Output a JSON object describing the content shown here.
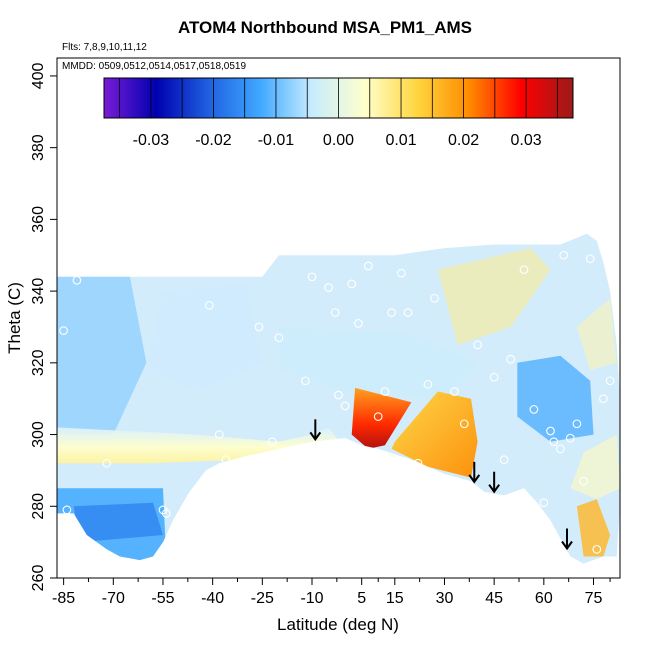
{
  "chart_data": {
    "type": "heatmap",
    "title": "ATOM4 Northbound MSA_PM1_AMS",
    "annotations": {
      "flights": "Flts: 7,8,9,10,11,12",
      "dates": "MMDD: 0509,0512,0514,0517,0518,0519"
    },
    "xlabel": "Latitude (deg N)",
    "ylabel": "Theta (C)",
    "xlim": [
      -87,
      83
    ],
    "ylim": [
      260,
      405
    ],
    "x_ticks": [
      -85,
      -70,
      -55,
      -40,
      -25,
      -10,
      5,
      15,
      30,
      45,
      60,
      75
    ],
    "x_tick_labels": [
      "-85",
      "-70",
      "-55",
      "-40",
      "-25",
      "-10",
      "5",
      "15",
      "30",
      "45",
      "60",
      "75"
    ],
    "x_minor_ticks": [
      -77.5,
      -62.5,
      -47.5,
      -32.5,
      -17.5,
      -2.5,
      10,
      22.5,
      37.5,
      52.5,
      67.5,
      80
    ],
    "y_ticks": [
      260,
      280,
      300,
      320,
      340,
      360,
      380,
      400
    ],
    "y_tick_labels": [
      "260",
      "280",
      "300",
      "320",
      "340",
      "360",
      "380",
      "400"
    ],
    "colorbar": {
      "min": -0.0375,
      "max": 0.0375,
      "ticks": [
        -0.03,
        -0.02,
        -0.01,
        0.0,
        0.01,
        0.02,
        0.03
      ],
      "tick_labels": [
        "-0.03",
        "-0.02",
        "-0.01",
        "0.00",
        "0.01",
        "0.02",
        "0.03"
      ],
      "stops": [
        "#7a1cd6",
        "#0000b0",
        "#1f5fe0",
        "#3fa8ff",
        "#c8ecff",
        "#ffffcc",
        "#ffd640",
        "#ff8c00",
        "#ff0000",
        "#9c1a1a"
      ]
    },
    "regions": [
      {
        "name": "blue-low-left",
        "value": -0.012
      },
      {
        "name": "yellow-tropics-band",
        "value": 0.005
      },
      {
        "name": "red-core",
        "value": 0.032
      },
      {
        "name": "orange-wedge",
        "value": 0.018
      },
      {
        "name": "blue-north-patch",
        "value": -0.011
      },
      {
        "name": "yellow-ridge-north",
        "value": 0.008
      },
      {
        "name": "orange-polar-low",
        "value": 0.016
      }
    ],
    "tropopause_lat": [
      -87,
      -82,
      -78,
      -72,
      -68,
      -62,
      -58,
      -55,
      -52,
      -47,
      -42,
      -38,
      -30,
      -20,
      -10,
      0,
      5,
      10,
      20,
      30,
      38,
      42,
      48,
      54,
      58,
      62,
      68,
      72,
      78,
      80
    ],
    "tropopause_theta": [
      278,
      278,
      272,
      268,
      266,
      265,
      266,
      270,
      276,
      284,
      290,
      292,
      294,
      296,
      298,
      299,
      297,
      296,
      293,
      289,
      287,
      284,
      283,
      285,
      281,
      276,
      266,
      264,
      266,
      266
    ],
    "arrows_lat": [
      -9,
      39,
      45,
      67
    ],
    "samples": [
      {
        "lat": -85,
        "theta": 329
      },
      {
        "lat": -84,
        "theta": 279
      },
      {
        "lat": -81,
        "theta": 343
      },
      {
        "lat": -80,
        "theta": 272
      },
      {
        "lat": -72,
        "theta": 292
      },
      {
        "lat": -55,
        "theta": 279
      },
      {
        "lat": -54,
        "theta": 278
      },
      {
        "lat": -50,
        "theta": 276
      },
      {
        "lat": -41,
        "theta": 336
      },
      {
        "lat": -38,
        "theta": 300
      },
      {
        "lat": -36,
        "theta": 293
      },
      {
        "lat": -26,
        "theta": 330
      },
      {
        "lat": -22,
        "theta": 298
      },
      {
        "lat": -20,
        "theta": 327
      },
      {
        "lat": -12,
        "theta": 315
      },
      {
        "lat": -10,
        "theta": 344
      },
      {
        "lat": -5,
        "theta": 341
      },
      {
        "lat": -3,
        "theta": 334
      },
      {
        "lat": -2,
        "theta": 311
      },
      {
        "lat": 0,
        "theta": 308
      },
      {
        "lat": 2,
        "theta": 342
      },
      {
        "lat": 4,
        "theta": 331
      },
      {
        "lat": 7,
        "theta": 347
      },
      {
        "lat": 10,
        "theta": 305
      },
      {
        "lat": 12,
        "theta": 312
      },
      {
        "lat": 14,
        "theta": 334
      },
      {
        "lat": 17,
        "theta": 345
      },
      {
        "lat": 19,
        "theta": 334
      },
      {
        "lat": 22,
        "theta": 292
      },
      {
        "lat": 25,
        "theta": 314
      },
      {
        "lat": 27,
        "theta": 338
      },
      {
        "lat": 33,
        "theta": 312
      },
      {
        "lat": 36,
        "theta": 303
      },
      {
        "lat": 40,
        "theta": 325
      },
      {
        "lat": 45,
        "theta": 316
      },
      {
        "lat": 48,
        "theta": 293
      },
      {
        "lat": 50,
        "theta": 321
      },
      {
        "lat": 54,
        "theta": 346
      },
      {
        "lat": 57,
        "theta": 307
      },
      {
        "lat": 60,
        "theta": 281
      },
      {
        "lat": 62,
        "theta": 301
      },
      {
        "lat": 63,
        "theta": 298
      },
      {
        "lat": 65,
        "theta": 296
      },
      {
        "lat": 66,
        "theta": 350
      },
      {
        "lat": 68,
        "theta": 299
      },
      {
        "lat": 70,
        "theta": 303
      },
      {
        "lat": 72,
        "theta": 287
      },
      {
        "lat": 74,
        "theta": 349
      },
      {
        "lat": 76,
        "theta": 268
      },
      {
        "lat": 78,
        "theta": 310
      },
      {
        "lat": 80,
        "theta": 315
      }
    ]
  }
}
